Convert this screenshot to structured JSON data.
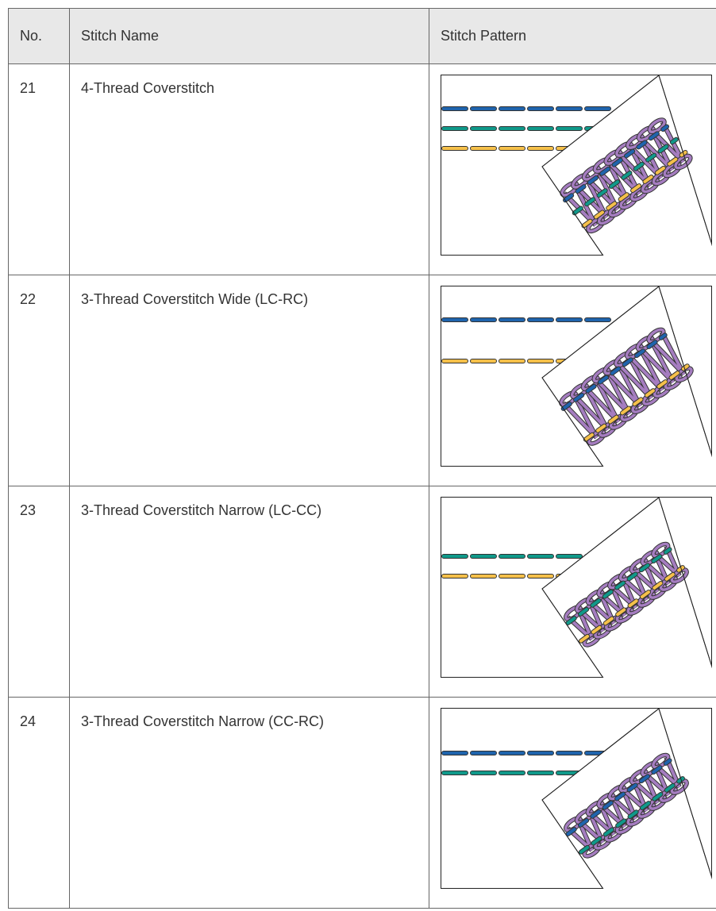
{
  "header": {
    "cells": [
      "No.",
      "Stitch Name",
      "Stitch Pattern"
    ]
  },
  "table": {
    "rows": [
      [
        "21",
        "4-Thread Coverstitch"
      ],
      [
        "22",
        "3-Thread Coverstitch Wide (LC-RC)"
      ],
      [
        "23",
        "3-Thread Coverstitch Narrow (LC-CC)"
      ],
      [
        "24",
        "3-Thread Coverstitch Narrow (CC-RC)"
      ]
    ]
  }
}
